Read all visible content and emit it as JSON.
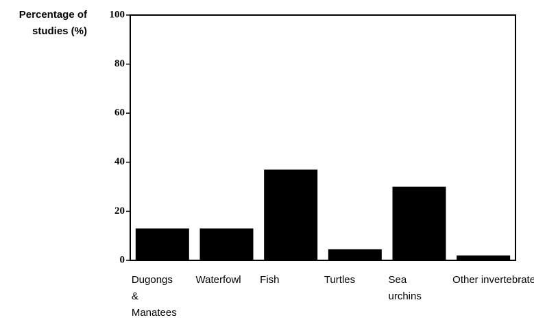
{
  "chart_data": {
    "type": "bar",
    "y_label": "Percentage of studies (%)",
    "categories": [
      "Dugongs & Manatees",
      "Waterfowl",
      "Fish",
      "Turtles",
      "Sea urchins",
      "Other invertebrates"
    ],
    "values": [
      13,
      13,
      37,
      4.5,
      30,
      2
    ],
    "color": "#000000",
    "ylim": [
      0,
      100
    ],
    "yticks": [
      0,
      20,
      40,
      60,
      80,
      100
    ],
    "grid": false
  }
}
